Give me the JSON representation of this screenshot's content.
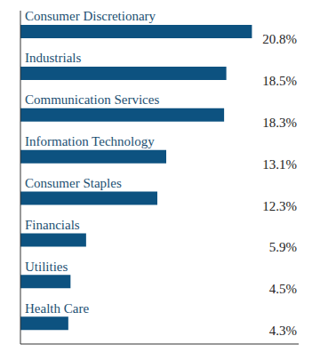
{
  "chart_data": {
    "type": "bar",
    "orientation": "horizontal",
    "categories": [
      "Consumer Discretionary",
      "Industrials",
      "Communication Services",
      "Information Technology",
      "Consumer Staples",
      "Financials",
      "Utilities",
      "Health Care"
    ],
    "values": [
      20.8,
      18.5,
      18.3,
      13.1,
      12.3,
      5.9,
      4.5,
      4.3
    ],
    "value_labels": [
      "20.8%",
      "18.5%",
      "18.3%",
      "13.1%",
      "12.3%",
      "5.9%",
      "4.5%",
      "4.3%"
    ],
    "color": "#0d5280",
    "xlim": [
      0,
      25
    ],
    "data_labels": true,
    "tick_labels": "y",
    "grid": false
  }
}
